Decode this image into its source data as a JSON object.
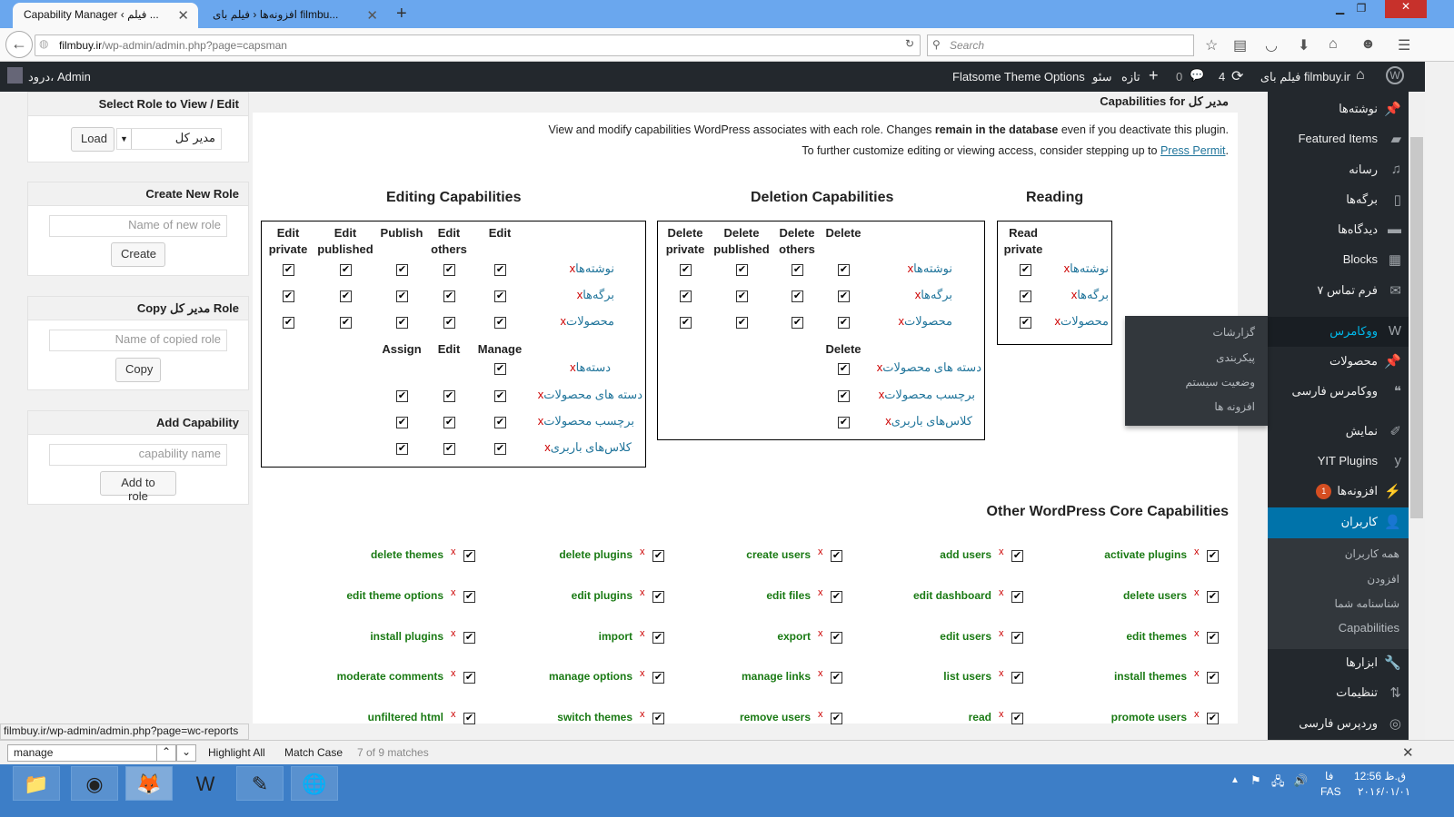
{
  "browser": {
    "tabs": [
      {
        "label": "Capability Manager ‹ فیلم ...",
        "active": true
      },
      {
        "label": "افزونه‌ها ‹ فیلم بای filmbu...",
        "active": false
      }
    ],
    "url_host": "filmbuy.ir",
    "url_path": "/wp-admin/admin.php?page=capsman",
    "search_placeholder": "Search",
    "status_link": "filmbuy.ir/wp-admin/admin.php?page=wc-reports"
  },
  "adminbar": {
    "greeting": "درود، Admin",
    "site": "فیلم بای filmbuy.ir",
    "updates": "4",
    "comments": "0",
    "new": "تازه",
    "seo": "سئو",
    "flatsome": "Flatsome Theme Options"
  },
  "left": {
    "select_role_title": "Select Role to View / Edit",
    "role_value": "مدیر کل",
    "load": "Load",
    "create_title": "Create New Role",
    "create_placeholder": "Name of new role",
    "create": "Create",
    "copy_title": "Copy مدیر کل Role",
    "copy_placeholder": "Name of copied role",
    "copy": "Copy",
    "addcap_title": "Add Capability",
    "addcap_placeholder": "capability name",
    "addcap": "Add to role"
  },
  "main": {
    "title": "Capabilities for مدیر کل",
    "intro1_pre": "View and modify capabilities WordPress associates with each role. Changes ",
    "intro1_bold": "remain in the database",
    "intro1_post": " even if you deactivate this plugin.",
    "intro2_pre": "To further customize editing or viewing access, consider stepping up to ",
    "intro2_link": "Press Permit",
    "intro2_post": ".",
    "editing": {
      "title": "Editing Capabilities",
      "headers": [
        "Edit private",
        "Edit published",
        "Publish",
        "Edit others",
        "Edit"
      ],
      "rows": [
        "نوشته‌ها",
        "برگه‌ها",
        "محصولات"
      ],
      "headers2": [
        "Assign",
        "Edit",
        "Manage"
      ],
      "rows2": [
        {
          "label": "دسته‌ها",
          "checks": [
            false,
            false,
            true
          ]
        },
        {
          "label": "دسته های محصولات",
          "checks": [
            true,
            true,
            true
          ]
        },
        {
          "label": "برچسب محصولات",
          "checks": [
            true,
            true,
            true
          ]
        },
        {
          "label": "کلاس‌های باربری",
          "checks": [
            true,
            true,
            true
          ]
        }
      ]
    },
    "deletion": {
      "title": "Deletion Capabilities",
      "headers": [
        "Delete private",
        "Delete published",
        "Delete others",
        "Delete"
      ],
      "rows": [
        "نوشته‌ها",
        "برگه‌ها",
        "محصولات"
      ],
      "header2": "Delete",
      "rows2": [
        "دسته های محصولات",
        "برچسب محصولات",
        "کلاس‌های باربری"
      ]
    },
    "reading": {
      "title": "Reading",
      "header": "Read private",
      "rows": [
        "نوشته‌ها",
        "برگه‌ها",
        "محصولات"
      ]
    },
    "other": {
      "title": "Other WordPress Core Capabilities",
      "rows": [
        [
          "delete themes",
          "delete plugins",
          "create users",
          "add users",
          "activate plugins"
        ],
        [
          "edit theme options",
          "edit plugins",
          "edit files",
          "edit dashboard",
          "delete users"
        ],
        [
          "install plugins",
          "import",
          "export",
          "edit users",
          "edit themes"
        ],
        [
          "moderate comments",
          "manage options",
          "manage links",
          "list users",
          "install themes"
        ],
        [
          "unfiltered html",
          "switch themes",
          "remove users",
          "read",
          "promote users"
        ]
      ]
    }
  },
  "sidebar": {
    "items": [
      {
        "label": "نوشته‌ها",
        "icon": "pin-icon"
      },
      {
        "label": "Featured Items",
        "icon": "folder-icon"
      },
      {
        "label": "رسانه",
        "icon": "media-icon"
      },
      {
        "label": "برگه‌ها",
        "icon": "page-icon"
      },
      {
        "label": "دیدگاه‌ها",
        "icon": "comment-icon"
      },
      {
        "label": "Blocks",
        "icon": "grid-icon"
      },
      {
        "label": "فرم تماس ۷",
        "icon": "mail-icon"
      },
      {
        "label": "ووکامرس",
        "icon": "woo-icon"
      },
      {
        "label": "محصولات",
        "icon": "pin-icon"
      },
      {
        "label": "ووکامرس فارسی",
        "icon": "quote-icon"
      },
      {
        "label": "نمایش",
        "icon": "brush-icon"
      },
      {
        "label": "YIT Plugins",
        "icon": "yit-icon"
      },
      {
        "label": "افزونه‌ها",
        "icon": "plugin-icon",
        "badge": "1"
      },
      {
        "label": "کاربران",
        "icon": "user-icon"
      },
      {
        "label": "ابزارها",
        "icon": "wrench-icon"
      },
      {
        "label": "تنظیمات",
        "icon": "settings-icon"
      },
      {
        "label": "وردپرس فارسی",
        "icon": "wp-fa-icon"
      }
    ],
    "users_sub": [
      "همه کاربران",
      "افزودن",
      "شناسنامه شما",
      "Capabilities"
    ],
    "flyout": [
      "گزارشات",
      "پیکربندی",
      "وضعیت سیستم",
      "افزونه ها"
    ],
    "accent": "#0073aa",
    "badge_color": "#d54e21"
  },
  "findbar": {
    "query": "manage",
    "highlight_all": "Highlight All",
    "match_case": "Match Case",
    "status": "7 of 9 matches"
  },
  "taskbar": {
    "apps": [
      "file-explorer-icon",
      "chrome-icon",
      "firefox-icon",
      "word-icon",
      "notepad-icon",
      "download-manager-icon"
    ],
    "lang_top": "فا",
    "lang": "FAS",
    "time": "ق.ظ 12:56",
    "date": "۲۰۱۶/۰۱/۰۱"
  }
}
